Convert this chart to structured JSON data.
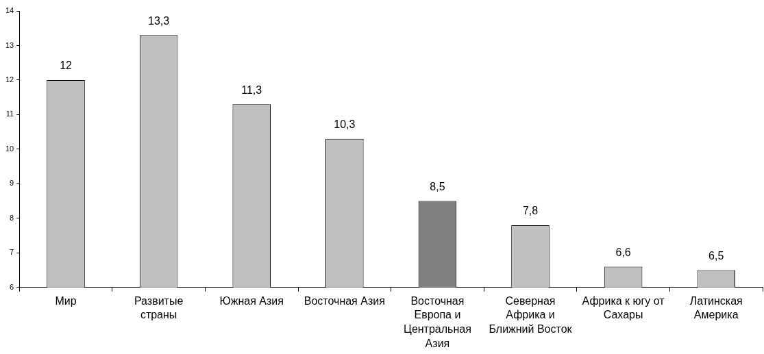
{
  "chart_data": {
    "type": "bar",
    "categories": [
      "Мир",
      "Развитые страны",
      "Южная Азия",
      "Восточная Азия",
      "Восточная Европа и Центральная Азия",
      "Северная Африка и Ближний Восток",
      "Африка к югу от Сахары",
      "Латинская Америка"
    ],
    "values": [
      12,
      13.3,
      11.3,
      10.3,
      8.5,
      7.8,
      6.6,
      6.5
    ],
    "colors": [
      "#c0c0c0",
      "#c0c0c0",
      "#c0c0c0",
      "#c0c0c0",
      "#808080",
      "#c0c0c0",
      "#c0c0c0",
      "#c0c0c0"
    ],
    "value_labels": [
      "12",
      "13,3",
      "11,3",
      "10,3",
      "8,5",
      "7,8",
      "6,6",
      "6,5"
    ],
    "ylim": [
      6,
      14
    ],
    "yticks": [
      6,
      7,
      8,
      9,
      10,
      11,
      12,
      13,
      14
    ]
  }
}
